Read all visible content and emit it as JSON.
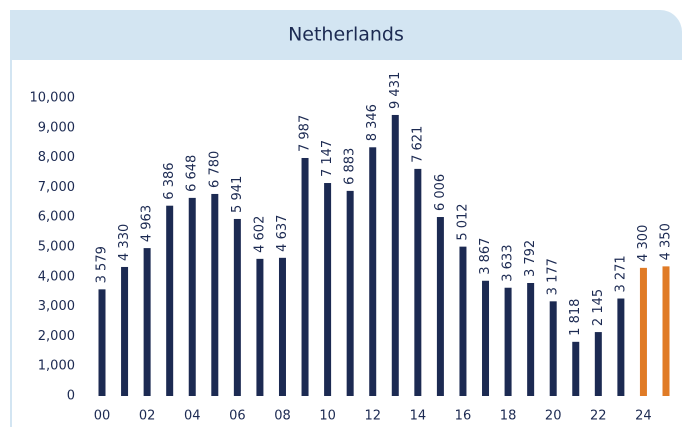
{
  "chart_data": {
    "type": "bar",
    "title": "Netherlands",
    "categories": [
      "00",
      null,
      "02",
      null,
      "04",
      null,
      "06",
      null,
      "08",
      null,
      "10",
      null,
      "12",
      null,
      "14",
      null,
      "16",
      null,
      "18",
      null,
      "20",
      null,
      "22",
      null,
      "24",
      null
    ],
    "values": [
      3579,
      4330,
      4963,
      6386,
      6648,
      6780,
      5941,
      4602,
      4637,
      7987,
      7147,
      6883,
      8346,
      9431,
      7621,
      6006,
      5012,
      3867,
      3633,
      3792,
      3177,
      1818,
      2145,
      3271,
      4300,
      4350
    ],
    "value_labels": [
      "3 579",
      "4 330",
      "4 963",
      "6 386",
      "6 648",
      "6 780",
      "5 941",
      "4 602",
      "4 637",
      "7 987",
      "7 147",
      "6 883",
      "8 346",
      "9 431",
      "7 621",
      "6 006",
      "5 012",
      "3 867",
      "3 633",
      "3 792",
      "3 177",
      "1 818",
      "2 145",
      "3 271",
      "4 300",
      "4 350"
    ],
    "colors": [
      "#1c2a52",
      "#1c2a52",
      "#1c2a52",
      "#1c2a52",
      "#1c2a52",
      "#1c2a52",
      "#1c2a52",
      "#1c2a52",
      "#1c2a52",
      "#1c2a52",
      "#1c2a52",
      "#1c2a52",
      "#1c2a52",
      "#1c2a52",
      "#1c2a52",
      "#1c2a52",
      "#1c2a52",
      "#1c2a52",
      "#1c2a52",
      "#1c2a52",
      "#1c2a52",
      "#1c2a52",
      "#1c2a52",
      "#1c2a52",
      "#e07b26",
      "#e07b26"
    ],
    "ylim": [
      0,
      10000
    ],
    "yticks": [
      0,
      {
        "value": 1000,
        "label": "1,000"
      },
      {
        "value": 2000,
        "label": "2,000"
      },
      {
        "value": 3000,
        "label": "3,000"
      },
      {
        "value": 4000,
        "label": "4,000"
      },
      {
        "value": 5000,
        "label": "5,000"
      },
      {
        "value": 6000,
        "label": "6,000"
      },
      {
        "value": 7000,
        "label": "7,000"
      },
      {
        "value": 8000,
        "label": "8,000"
      },
      {
        "value": 9000,
        "label": "9,000"
      },
      {
        "value": 10000,
        "label": "10,000"
      }
    ],
    "grid": false
  }
}
